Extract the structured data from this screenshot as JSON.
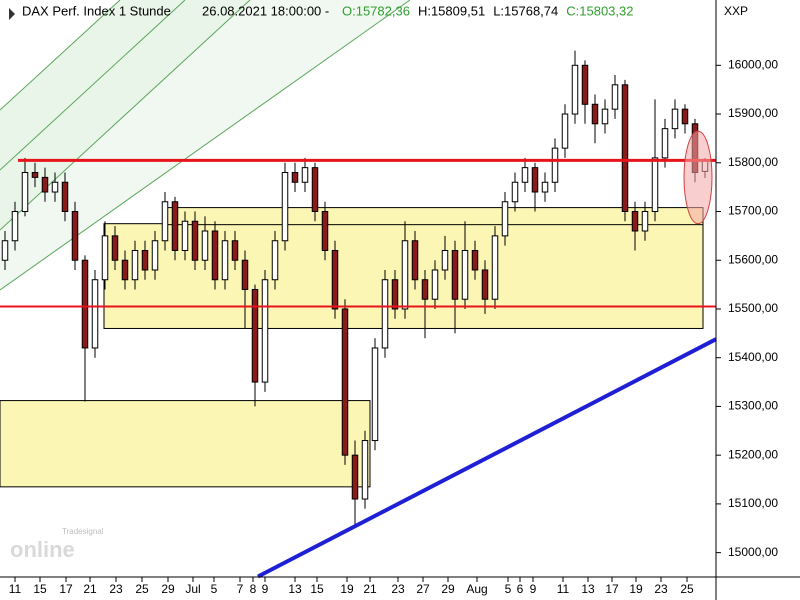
{
  "chart_data": {
    "type": "candlestick",
    "title": "DAX Perf. Index 1 Stunde",
    "timestamp": "26.08.2021 18:00:00 -",
    "ohlc_texts": [
      {
        "text": "O:15782,36",
        "color": "#2e9e2e"
      },
      {
        "text": "H:15809,51",
        "color": "#000000"
      },
      {
        "text": "L:15768,74",
        "color": "#000000"
      },
      {
        "text": "C:15803,32",
        "color": "#2e9e2e"
      }
    ],
    "axis_name": "XXP",
    "logo": {
      "brand": "Tradesignal",
      "name": "online"
    },
    "up_color": "#ffffff",
    "down_color": "#8b1a1a",
    "xlim": [
      -0.5,
      71.1
    ],
    "ylim": [
      14950,
      16134
    ],
    "yticks": [
      {
        "value": 15000,
        "label": "15000,00"
      },
      {
        "value": 15100,
        "label": "15100,00"
      },
      {
        "value": 15200,
        "label": "15200,00"
      },
      {
        "value": 15300,
        "label": "15300,00"
      },
      {
        "value": 15400,
        "label": "15400,00"
      },
      {
        "value": 15500,
        "label": "15500,00"
      },
      {
        "value": 15600,
        "label": "15600,00"
      },
      {
        "value": 15700,
        "label": "15700,00"
      },
      {
        "value": 15800,
        "label": "15800,00"
      },
      {
        "value": 15900,
        "label": "15900,00"
      },
      {
        "value": 16000,
        "label": "16000,00"
      }
    ],
    "xticks": [
      {
        "value": 1.0,
        "label": "11"
      },
      {
        "value": 3.5,
        "label": "15"
      },
      {
        "value": 6.1,
        "label": "17"
      },
      {
        "value": 8.5,
        "label": "21"
      },
      {
        "value": 11.1,
        "label": "23"
      },
      {
        "value": 13.7,
        "label": "25"
      },
      {
        "value": 16.3,
        "label": "29"
      },
      {
        "value": 18.8,
        "label": "Jul"
      },
      {
        "value": 20.9,
        "label": "5"
      },
      {
        "value": 23.5,
        "label": "7"
      },
      {
        "value": 24.8,
        "label": "8"
      },
      {
        "value": 26.0,
        "label": "9"
      },
      {
        "value": 29.0,
        "label": "13"
      },
      {
        "value": 31.2,
        "label": "15"
      },
      {
        "value": 34.2,
        "label": "19"
      },
      {
        "value": 36.5,
        "label": "21"
      },
      {
        "value": 39.3,
        "label": "23"
      },
      {
        "value": 41.8,
        "label": "27"
      },
      {
        "value": 44.3,
        "label": "29"
      },
      {
        "value": 47.2,
        "label": "Aug"
      },
      {
        "value": 50.3,
        "label": "5"
      },
      {
        "value": 51.5,
        "label": "6"
      },
      {
        "value": 52.8,
        "label": "9"
      },
      {
        "value": 55.8,
        "label": "11"
      },
      {
        "value": 58.3,
        "label": "13"
      },
      {
        "value": 60.7,
        "label": "17"
      },
      {
        "value": 63.1,
        "label": "19"
      },
      {
        "value": 65.6,
        "label": "23"
      },
      {
        "value": 68.2,
        "label": "25"
      }
    ],
    "x": [
      0,
      1,
      2,
      3,
      4,
      5,
      6,
      7,
      8,
      9,
      10,
      11,
      12,
      13,
      14,
      15,
      16,
      17,
      18,
      19,
      20,
      21,
      22,
      23,
      24,
      25,
      26,
      27,
      28,
      29,
      30,
      31,
      32,
      33,
      34,
      35,
      36,
      37,
      38,
      39,
      40,
      41,
      42,
      43,
      44,
      45,
      46,
      47,
      48,
      49,
      50,
      51,
      52,
      53,
      54,
      55,
      56,
      57,
      58,
      59,
      60,
      61,
      62,
      63,
      64,
      65,
      66,
      67,
      68,
      69,
      70
    ],
    "open": [
      15600,
      15640,
      15700,
      15780,
      15770,
      15740,
      15760,
      15700,
      15600,
      15420,
      15560,
      15650,
      15600,
      15560,
      15620,
      15580,
      15640,
      15720,
      15620,
      15680,
      15600,
      15660,
      15560,
      15640,
      15600,
      15540,
      15350,
      15560,
      15640,
      15780,
      15760,
      15790,
      15700,
      15620,
      15500,
      15200,
      15110,
      15230,
      15420,
      15560,
      15500,
      15640,
      15560,
      15520,
      15580,
      15620,
      15520,
      15620,
      15580,
      15520,
      15650,
      15720,
      15760,
      15790,
      15740,
      15760,
      15830,
      15900,
      16000,
      15920,
      15880,
      15910,
      15960,
      15700,
      15660,
      15700,
      15810,
      15870,
      15910,
      15880,
      15782.36
    ],
    "high": [
      15660,
      15720,
      15810,
      15800,
      15790,
      15780,
      15780,
      15720,
      15610,
      15580,
      15680,
      15670,
      15620,
      15640,
      15640,
      15660,
      15740,
      15730,
      15700,
      15700,
      15690,
      15680,
      15660,
      15660,
      15620,
      15550,
      15580,
      15660,
      15800,
      15800,
      15810,
      15800,
      15720,
      15640,
      15520,
      15230,
      15250,
      15440,
      15580,
      15580,
      15680,
      15660,
      15580,
      15600,
      15650,
      15640,
      15680,
      15640,
      15600,
      15670,
      15740,
      15780,
      15810,
      15800,
      15780,
      15850,
      15920,
      16030,
      16010,
      15940,
      15930,
      15980,
      15970,
      15720,
      15720,
      15930,
      15890,
      15930,
      15920,
      15890,
      15809.51
    ],
    "low": [
      15580,
      15620,
      15690,
      15750,
      15720,
      15720,
      15680,
      15580,
      15310,
      15400,
      15540,
      15580,
      15540,
      15540,
      15560,
      15560,
      15620,
      15600,
      15600,
      15580,
      15580,
      15540,
      15540,
      15580,
      15460,
      15300,
      15330,
      15540,
      15620,
      15740,
      15740,
      15680,
      15600,
      15480,
      15180,
      15050,
      15090,
      15210,
      15400,
      15480,
      15480,
      15540,
      15440,
      15500,
      15560,
      15450,
      15500,
      15560,
      15490,
      15500,
      15630,
      15700,
      15740,
      15700,
      15720,
      15740,
      15810,
      15880,
      15880,
      15840,
      15860,
      15890,
      15680,
      15620,
      15640,
      15680,
      15790,
      15850,
      15860,
      15760,
      15768.74
    ],
    "close": [
      15640,
      15700,
      15780,
      15770,
      15740,
      15760,
      15700,
      15600,
      15420,
      15560,
      15650,
      15600,
      15560,
      15620,
      15580,
      15640,
      15720,
      15620,
      15680,
      15600,
      15660,
      15560,
      15640,
      15600,
      15540,
      15350,
      15560,
      15640,
      15780,
      15760,
      15790,
      15700,
      15620,
      15500,
      15200,
      15110,
      15230,
      15420,
      15560,
      15500,
      15640,
      15560,
      15520,
      15580,
      15620,
      15520,
      15620,
      15580,
      15520,
      15650,
      15720,
      15760,
      15790,
      15740,
      15760,
      15830,
      15900,
      16000,
      15920,
      15880,
      15910,
      15960,
      15700,
      15660,
      15700,
      15810,
      15870,
      15910,
      15880,
      15780,
      15803.32
    ],
    "zones": [
      {
        "x": [
          -0.5,
          36.5
        ],
        "y": [
          15135,
          15312
        ],
        "color": "#fbf6b4"
      },
      {
        "x": [
          9.9,
          69.8
        ],
        "y": [
          15460,
          15675
        ],
        "color": "#fbf6b4"
      },
      {
        "x": [
          16,
          69.8
        ],
        "y": [
          15673,
          15708
        ],
        "color": "#fbf6b4"
      }
    ],
    "levels": [
      {
        "x": [
          1.3,
          71.1
        ],
        "value": 15805,
        "color": "#e8141b",
        "width": 3
      },
      {
        "x": [
          -0.5,
          71.1
        ],
        "value": 15505,
        "color": "#e8141b",
        "width": 2
      }
    ],
    "trendline": {
      "x": [
        25.3,
        71.1
      ],
      "y": [
        14951,
        15438
      ],
      "color": "#1f1fd6"
    },
    "highlight": {
      "x": [
        67.9,
        70.7
      ],
      "y": [
        15675,
        15865
      ],
      "color": "#f4a6a6"
    }
  }
}
